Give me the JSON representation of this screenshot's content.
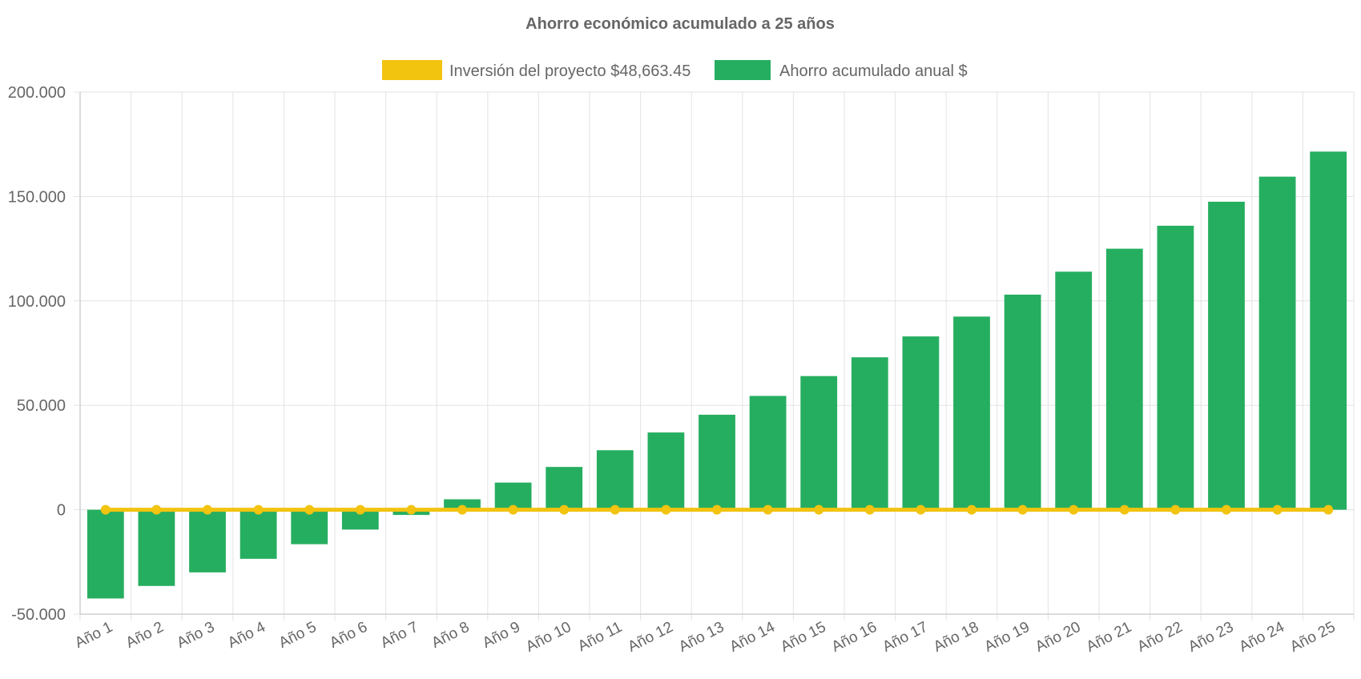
{
  "chart_data": {
    "type": "bar",
    "title": "Ahorro económico acumulado a 25 años",
    "xlabel": "",
    "ylabel": "",
    "categories": [
      "Año 1",
      "Año 2",
      "Año 3",
      "Año 4",
      "Año 5",
      "Año 6",
      "Año 7",
      "Año 8",
      "Año 9",
      "Año 10",
      "Año 11",
      "Año 12",
      "Año 13",
      "Año 14",
      "Año 15",
      "Año 16",
      "Año 17",
      "Año 18",
      "Año 19",
      "Año 20",
      "Año 21",
      "Año 22",
      "Año 23",
      "Año 24",
      "Año 25"
    ],
    "ylim": [
      -50000,
      200000
    ],
    "yticks": [
      -50000,
      0,
      50000,
      100000,
      150000,
      200000
    ],
    "ytick_labels": [
      "-50.000",
      "0",
      "50.000",
      "100.000",
      "150.000",
      "200.000"
    ],
    "grid": true,
    "legend_position": "top-center",
    "series": [
      {
        "name": "Inversión del proyecto $48,663.45",
        "type": "line",
        "color": "#f2c30f",
        "values": [
          0,
          0,
          0,
          0,
          0,
          0,
          0,
          0,
          0,
          0,
          0,
          0,
          0,
          0,
          0,
          0,
          0,
          0,
          0,
          0,
          0,
          0,
          0,
          0,
          0
        ]
      },
      {
        "name": "Ahorro acumulado anual $",
        "type": "bar",
        "color": "#26ae60",
        "values": [
          -42500,
          -36500,
          -30000,
          -23500,
          -16500,
          -9500,
          -2500,
          5000,
          13000,
          20500,
          28500,
          37000,
          45500,
          54500,
          64000,
          73000,
          83000,
          92500,
          103000,
          114000,
          125000,
          136000,
          147500,
          159500,
          171500
        ]
      }
    ]
  }
}
